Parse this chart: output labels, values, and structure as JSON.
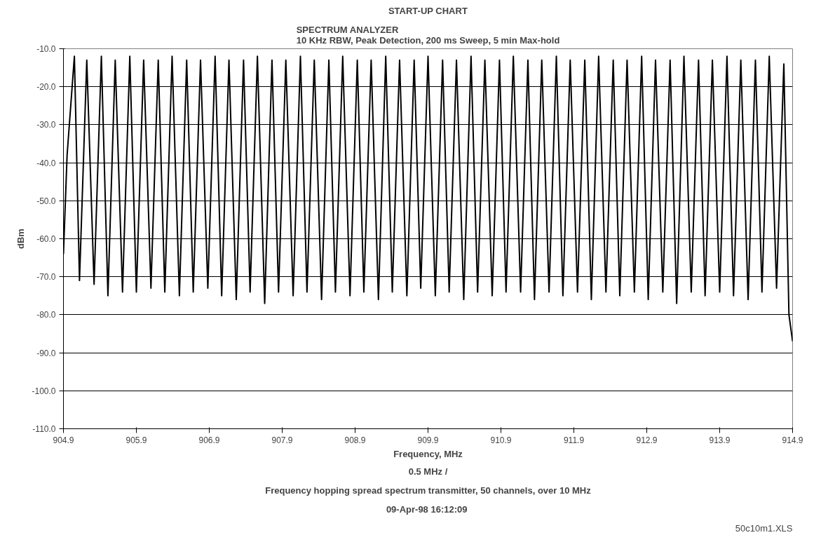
{
  "chart_data": {
    "type": "line",
    "title": "START-UP CHART",
    "subtitle": "SPECTRUM ANALYZER\n10 KHz RBW, Peak Detection, 200 ms Sweep, 5 min Max-hold",
    "xlabel": "Frequency, MHz",
    "ylabel": "dBm",
    "annotations": [
      "0.5 MHz /",
      "Frequency hopping spread spectrum transmitter, 50 channels, over 10 MHz",
      "09-Apr-98  16:12:09",
      "50c10m1.XLS"
    ],
    "series": [
      {
        "color": "#000000",
        "x": [
          904.9,
          904.95,
          905.05,
          905.12,
          905.22,
          905.32,
          905.42,
          905.51,
          905.61,
          905.71,
          905.81,
          905.9,
          906.0,
          906.1,
          906.2,
          906.29,
          906.39,
          906.49,
          906.59,
          906.68,
          906.78,
          906.88,
          906.98,
          907.07,
          907.17,
          907.27,
          907.37,
          907.46,
          907.56,
          907.66,
          907.76,
          907.85,
          907.95,
          908.05,
          908.15,
          908.24,
          908.34,
          908.44,
          908.54,
          908.63,
          908.73,
          908.83,
          908.93,
          909.02,
          909.12,
          909.22,
          909.32,
          909.41,
          909.51,
          909.61,
          909.71,
          909.8,
          909.9,
          910.0,
          910.1,
          910.19,
          910.29,
          910.39,
          910.49,
          910.58,
          910.68,
          910.78,
          910.88,
          910.97,
          911.07,
          911.17,
          911.27,
          911.36,
          911.46,
          911.56,
          911.66,
          911.75,
          911.85,
          911.95,
          912.05,
          912.14,
          912.24,
          912.34,
          912.44,
          912.53,
          912.63,
          912.73,
          912.83,
          912.92,
          913.02,
          913.12,
          913.22,
          913.31,
          913.41,
          913.51,
          913.61,
          913.7,
          913.8,
          913.9,
          914.0,
          914.09,
          914.19,
          914.29,
          914.39,
          914.48,
          914.58,
          914.68,
          914.78,
          914.85,
          914.9
        ],
        "values": [
          -64,
          -38,
          -12,
          -71,
          -13,
          -72,
          -12,
          -75,
          -13,
          -74,
          -12,
          -74,
          -13,
          -73,
          -13,
          -74,
          -12,
          -75,
          -13,
          -74,
          -13,
          -73,
          -12,
          -75,
          -13,
          -76,
          -13,
          -74,
          -12,
          -77,
          -13,
          -74,
          -13,
          -75,
          -12,
          -74,
          -13,
          -76,
          -13,
          -74,
          -12,
          -75,
          -13,
          -74,
          -13,
          -76,
          -12,
          -74,
          -13,
          -75,
          -13,
          -73,
          -12,
          -75,
          -13,
          -74,
          -13,
          -76,
          -12,
          -74,
          -13,
          -75,
          -13,
          -74,
          -12,
          -74,
          -13,
          -76,
          -13,
          -74,
          -12,
          -75,
          -13,
          -74,
          -13,
          -76,
          -12,
          -74,
          -13,
          -75,
          -13,
          -74,
          -12,
          -76,
          -13,
          -74,
          -13,
          -77,
          -12,
          -74,
          -13,
          -75,
          -13,
          -74,
          -12,
          -75,
          -13,
          -76,
          -13,
          -74,
          -12,
          -73,
          -14,
          -80,
          -87
        ]
      }
    ],
    "xlim": [
      904.9,
      914.9
    ],
    "xticks": [
      904.9,
      905.9,
      906.9,
      907.9,
      908.9,
      909.9,
      910.9,
      911.9,
      912.9,
      913.9,
      914.9
    ],
    "ylim": [
      -110,
      -10
    ],
    "yticks": [
      {
        "value": -10,
        "label": "-10.0"
      },
      {
        "value": -20,
        "label": "-20.0"
      },
      {
        "value": -30,
        "label": "-30.0"
      },
      {
        "value": -40,
        "label": "-40.0"
      },
      {
        "value": -50,
        "label": "-50.0"
      },
      {
        "value": -60,
        "label": "-60.0"
      },
      {
        "value": -70,
        "label": "-70.0"
      },
      {
        "value": -80,
        "label": "-80.0"
      },
      {
        "value": -90,
        "label": "-90.0"
      },
      {
        "value": -100,
        "label": "-100.0"
      },
      {
        "value": -110,
        "label": "-110.0"
      }
    ],
    "grid": "y"
  }
}
